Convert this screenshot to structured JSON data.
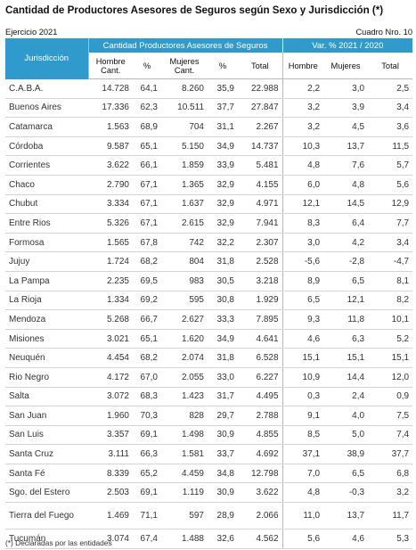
{
  "title": "Cantidad de Productores Asesores de Seguros según Sexo y Jurisdicción (*)",
  "ejercicio": "Ejercicio  2021",
  "cuadro": "Cuadro Nro. 10",
  "header": {
    "jurisdiccion": "Jurisdicción",
    "cantidad_group": "Cantidad Productores Asesores de Seguros",
    "var_group": "Var. % 2021 / 2020",
    "hombre_cant_1": "Hombre",
    "hombre_cant_2": "Cant.",
    "pct1": "%",
    "mujeres_cant_1": "Mujeres",
    "mujeres_cant_2": "Cant.",
    "pct2": "%",
    "total": "Total",
    "var_hombre": "Hombre",
    "var_mujeres": "Mujeres",
    "var_total": "Total"
  },
  "rows": [
    {
      "name": "C.A.B.A.",
      "hombre": "14.728",
      "h_pct": "64,1",
      "mujeres": "8.260",
      "m_pct": "35,9",
      "total": "22.988",
      "vh": "2,2",
      "vm": "3,0",
      "vt": "2,5"
    },
    {
      "name": "Buenos Aires",
      "hombre": "17.336",
      "h_pct": "62,3",
      "mujeres": "10.511",
      "m_pct": "37,7",
      "total": "27.847",
      "vh": "3,2",
      "vm": "3,9",
      "vt": "3,4"
    },
    {
      "name": "Catamarca",
      "hombre": "1.563",
      "h_pct": "68,9",
      "mujeres": "704",
      "m_pct": "31,1",
      "total": "2.267",
      "vh": "3,2",
      "vm": "4,5",
      "vt": "3,6"
    },
    {
      "name": "Córdoba",
      "hombre": "9.587",
      "h_pct": "65,1",
      "mujeres": "5.150",
      "m_pct": "34,9",
      "total": "14.737",
      "vh": "10,3",
      "vm": "13,7",
      "vt": "11,5"
    },
    {
      "name": "Corrientes",
      "hombre": "3.622",
      "h_pct": "66,1",
      "mujeres": "1.859",
      "m_pct": "33,9",
      "total": "5.481",
      "vh": "4,8",
      "vm": "7,6",
      "vt": "5,7"
    },
    {
      "name": "Chaco",
      "hombre": "2.790",
      "h_pct": "67,1",
      "mujeres": "1.365",
      "m_pct": "32,9",
      "total": "4.155",
      "vh": "6,0",
      "vm": "4,8",
      "vt": "5,6"
    },
    {
      "name": "Chubut",
      "hombre": "3.334",
      "h_pct": "67,1",
      "mujeres": "1.637",
      "m_pct": "32,9",
      "total": "4.971",
      "vh": "12,1",
      "vm": "14,5",
      "vt": "12,9"
    },
    {
      "name": "Entre Rios",
      "hombre": "5.326",
      "h_pct": "67,1",
      "mujeres": "2.615",
      "m_pct": "32,9",
      "total": "7.941",
      "vh": "8,3",
      "vm": "6,4",
      "vt": "7,7"
    },
    {
      "name": "Formosa",
      "hombre": "1.565",
      "h_pct": "67,8",
      "mujeres": "742",
      "m_pct": "32,2",
      "total": "2.307",
      "vh": "3,0",
      "vm": "4,2",
      "vt": "3,4"
    },
    {
      "name": "Jujuy",
      "hombre": "1.724",
      "h_pct": "68,2",
      "mujeres": "804",
      "m_pct": "31,8",
      "total": "2.528",
      "vh": "-5,6",
      "vm": "-2,8",
      "vt": "-4,7"
    },
    {
      "name": "La Pampa",
      "hombre": "2.235",
      "h_pct": "69,5",
      "mujeres": "983",
      "m_pct": "30,5",
      "total": "3.218",
      "vh": "8,9",
      "vm": "6,5",
      "vt": "8,1"
    },
    {
      "name": "La Rioja",
      "hombre": "1.334",
      "h_pct": "69,2",
      "mujeres": "595",
      "m_pct": "30,8",
      "total": "1.929",
      "vh": "6,5",
      "vm": "12,1",
      "vt": "8,2"
    },
    {
      "name": "Mendoza",
      "hombre": "5.268",
      "h_pct": "66,7",
      "mujeres": "2.627",
      "m_pct": "33,3",
      "total": "7.895",
      "vh": "9,3",
      "vm": "11,8",
      "vt": "10,1"
    },
    {
      "name": "Misiones",
      "hombre": "3.021",
      "h_pct": "65,1",
      "mujeres": "1.620",
      "m_pct": "34,9",
      "total": "4.641",
      "vh": "4,6",
      "vm": "6,3",
      "vt": "5,2"
    },
    {
      "name": "Neuquén",
      "hombre": "4.454",
      "h_pct": "68,2",
      "mujeres": "2.074",
      "m_pct": "31,8",
      "total": "6.528",
      "vh": "15,1",
      "vm": "15,1",
      "vt": "15,1"
    },
    {
      "name": "Rio Negro",
      "hombre": "4.172",
      "h_pct": "67,0",
      "mujeres": "2.055",
      "m_pct": "33,0",
      "total": "6.227",
      "vh": "10,9",
      "vm": "14,4",
      "vt": "12,0"
    },
    {
      "name": "Salta",
      "hombre": "3.072",
      "h_pct": "68,3",
      "mujeres": "1.423",
      "m_pct": "31,7",
      "total": "4.495",
      "vh": "0,3",
      "vm": "2,4",
      "vt": "0,9"
    },
    {
      "name": "San Juan",
      "hombre": "1.960",
      "h_pct": "70,3",
      "mujeres": "828",
      "m_pct": "29,7",
      "total": "2.788",
      "vh": "9,1",
      "vm": "4,0",
      "vt": "7,5"
    },
    {
      "name": "San Luis",
      "hombre": "3.357",
      "h_pct": "69,1",
      "mujeres": "1.498",
      "m_pct": "30,9",
      "total": "4.855",
      "vh": "8,5",
      "vm": "5,0",
      "vt": "7,4"
    },
    {
      "name": "Santa Cruz",
      "hombre": "3.111",
      "h_pct": "66,3",
      "mujeres": "1.581",
      "m_pct": "33,7",
      "total": "4.692",
      "vh": "37,1",
      "vm": "38,9",
      "vt": "37,7"
    },
    {
      "name": "Santa Fé",
      "hombre": "8.339",
      "h_pct": "65,2",
      "mujeres": "4.459",
      "m_pct": "34,8",
      "total": "12.798",
      "vh": "7,0",
      "vm": "6,5",
      "vt": "6,8"
    },
    {
      "name": "Sgo. del Estero",
      "hombre": "2.503",
      "h_pct": "69,1",
      "mujeres": "1.119",
      "m_pct": "30,9",
      "total": "3.622",
      "vh": "4,8",
      "vm": "-0,3",
      "vt": "3,2"
    },
    {
      "name": "Tierra del Fuego",
      "hombre": "1.469",
      "h_pct": "71,1",
      "mujeres": "597",
      "m_pct": "28,9",
      "total": "2.066",
      "vh": "11,0",
      "vm": "13,7",
      "vt": "11,7"
    },
    {
      "name": "Tucumán",
      "hombre": "3.074",
      "h_pct": "67,4",
      "mujeres": "1.488",
      "m_pct": "32,6",
      "total": "4.562",
      "vh": "5,6",
      "vm": "4,6",
      "vt": "5,3"
    }
  ],
  "footnote": "(*) Declaradas por las entidades"
}
